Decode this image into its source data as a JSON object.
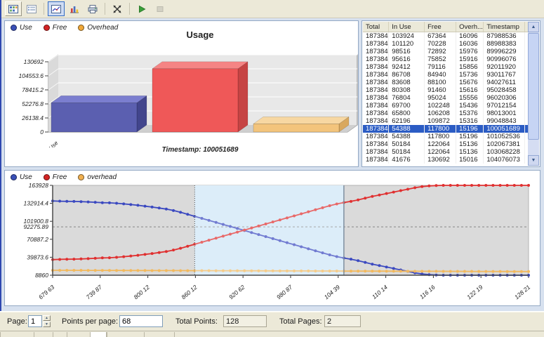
{
  "toolbar": {
    "groups": [
      [
        "grid-view",
        "list-view"
      ],
      [
        "chart-view",
        "bar-chart",
        "print"
      ],
      [
        "fit-window"
      ],
      [
        "play",
        "stop"
      ]
    ],
    "selected": "chart-view",
    "raised": "grid-view",
    "disabled": [
      "stop"
    ]
  },
  "bar_panel": {
    "legend": [
      {
        "label": "Use",
        "color": "#3a50b8"
      },
      {
        "label": "Free",
        "color": "#d42424"
      },
      {
        "label": "Overhead",
        "color": "#f0a838"
      }
    ]
  },
  "line_panel": {
    "legend": [
      {
        "label": "Use",
        "color": "#3a50b8"
      },
      {
        "label": "Free",
        "color": "#d42424"
      },
      {
        "label": "overhead",
        "color": "#f0b050"
      }
    ]
  },
  "chart_data": [
    {
      "type": "bar",
      "title": "Usage",
      "annotation": "Timestamp: 100051689",
      "categories": [
        "Use"
      ],
      "series": [
        {
          "name": "Use",
          "values": [
            54388
          ]
        },
        {
          "name": "Free",
          "values": [
            117800
          ]
        },
        {
          "name": "Overhead",
          "values": [
            15196
          ]
        }
      ],
      "ylim": [
        0,
        130692
      ],
      "yticks": [
        0,
        26138.4,
        52276.8,
        78415.2,
        104553.6,
        130692
      ],
      "colors": [
        {
          "front": "#5b5fb0",
          "top": "#7b7ecf",
          "side": "#42458c"
        },
        {
          "front": "#ef5858",
          "top": "#f58484",
          "side": "#c64444"
        },
        {
          "front": "#f3c47c",
          "top": "#f7d7a2",
          "side": "#d9a85e"
        }
      ]
    },
    {
      "type": "line",
      "title": "",
      "x_tick_labels": [
        "679 63",
        "739 87",
        "800 12",
        "860 12",
        "920 62",
        "980 87",
        "104 39",
        "110 14",
        "116 16",
        "122 19",
        "128 21"
      ],
      "ylim": [
        8860,
        163928
      ],
      "yticks": [
        8860,
        39873.6,
        70887.2,
        101900.8,
        132914.4,
        163928
      ],
      "threshold": 92275.89,
      "selection": {
        "start_index": 20,
        "end_index": 41
      },
      "series": [
        {
          "name": "Use",
          "color": "#3b49c0",
          "values": [
            137000,
            136600,
            136300,
            136200,
            135800,
            135300,
            134700,
            134000,
            133800,
            133000,
            132000,
            130800,
            129500,
            128000,
            126500,
            124800,
            123000,
            120500,
            117500,
            114000,
            110500,
            107000,
            103500,
            100000,
            96500,
            93000,
            89500,
            86000,
            82500,
            79000,
            75500,
            72000,
            68500,
            65000,
            61500,
            58000,
            54500,
            51000,
            47500,
            44000,
            41000,
            38500,
            36500,
            34000,
            31000,
            28000,
            25500,
            23000,
            20500,
            18000,
            15500,
            13000,
            11000,
            9800,
            9200,
            8900,
            8860,
            8860,
            8860,
            8860,
            8860,
            8860,
            8860,
            8860,
            8860,
            8860,
            8860,
            8860
          ]
        },
        {
          "name": "Free",
          "color": "#e03030",
          "values": [
            35788,
            36188,
            36488,
            36588,
            36988,
            37488,
            38088,
            38788,
            38988,
            39788,
            40788,
            41988,
            43288,
            44788,
            46288,
            47988,
            49788,
            52288,
            55288,
            58788,
            62288,
            65788,
            69288,
            72788,
            76288,
            79788,
            83288,
            86788,
            90288,
            93788,
            97288,
            100788,
            104288,
            107788,
            111288,
            114788,
            118288,
            121788,
            125288,
            128788,
            131788,
            134288,
            136288,
            138788,
            141788,
            144788,
            147288,
            149788,
            152288,
            154788,
            157288,
            159788,
            161788,
            162988,
            163588,
            163888,
            163928,
            163928,
            163928,
            163928,
            163928,
            163928,
            163928,
            163928,
            163928,
            163928,
            163928,
            163928
          ]
        },
        {
          "name": "overhead",
          "color": "#f2b95e",
          "values": [
            17400,
            17367,
            17334,
            17301,
            17268,
            17235,
            17202,
            17169,
            17136,
            17103,
            17070,
            17037,
            17004,
            16971,
            16938,
            16905,
            16872,
            16839,
            16806,
            16773,
            16740,
            16707,
            16674,
            16641,
            16608,
            16575,
            16542,
            16509,
            16476,
            16443,
            16410,
            16377,
            16344,
            16311,
            16278,
            16245,
            16212,
            16179,
            16146,
            16113,
            16080,
            16047,
            16014,
            15981,
            15948,
            15915,
            15882,
            15849,
            15816,
            15783,
            15750,
            15717,
            15684,
            15651,
            15618,
            15585,
            15552,
            15519,
            15486,
            15453,
            15420,
            15387,
            15354,
            15321,
            15288,
            15255,
            15222,
            15189
          ]
        }
      ]
    }
  ],
  "table": {
    "columns": [
      "Total",
      "In Use",
      "Free",
      "Overh...",
      "Timestamp"
    ],
    "selected_index": 12,
    "rows": [
      [
        "187384",
        "103924",
        "67364",
        "16096",
        "87988536"
      ],
      [
        "187384",
        "101120",
        "70228",
        "16036",
        "88988383"
      ],
      [
        "187384",
        "98516",
        "72892",
        "15976",
        "89996229"
      ],
      [
        "187384",
        "95616",
        "75852",
        "15916",
        "90996076"
      ],
      [
        "187384",
        "92412",
        "79116",
        "15856",
        "92011920"
      ],
      [
        "187384",
        "86708",
        "84940",
        "15736",
        "93011767"
      ],
      [
        "187384",
        "83608",
        "88100",
        "15676",
        "94027611"
      ],
      [
        "187384",
        "80308",
        "91460",
        "15616",
        "95028458"
      ],
      [
        "187384",
        "76804",
        "95024",
        "15556",
        "96020306"
      ],
      [
        "187384",
        "69700",
        "102248",
        "15436",
        "97012154"
      ],
      [
        "187384",
        "65800",
        "106208",
        "15376",
        "98013001"
      ],
      [
        "187384",
        "62196",
        "109872",
        "15316",
        "99048843"
      ],
      [
        "187384",
        "54388",
        "117800",
        "15196",
        "100051689"
      ],
      [
        "187384",
        "54388",
        "117800",
        "15196",
        "101052536"
      ],
      [
        "187384",
        "50184",
        "122064",
        "15136",
        "102067381"
      ],
      [
        "187384",
        "50184",
        "122064",
        "15136",
        "103068228"
      ],
      [
        "187384",
        "41676",
        "130692",
        "15016",
        "104076073"
      ]
    ]
  },
  "controls": {
    "page_label": "Page:",
    "page_value": "1",
    "points_per_page_label": "Points per page:",
    "points_per_page_value": "68",
    "total_points_label": "Total Points:",
    "total_points_value": "128",
    "total_pages_label": "Total Pages:",
    "total_pages_value": "2"
  }
}
